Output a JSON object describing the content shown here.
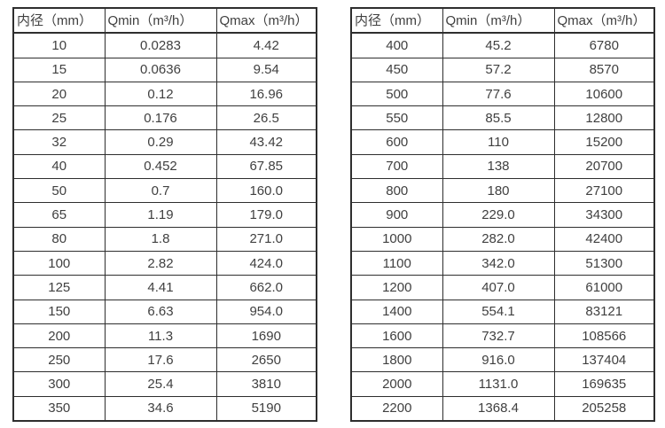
{
  "page": {
    "background": "#ffffff",
    "text_color": "#404040",
    "border_color": "#2e2e2e"
  },
  "tables": [
    {
      "name": "flow-spec-table-small-diameters",
      "headers": [
        "内径（mm）",
        "Qmin（m³/h）",
        "Qmax（m³/h）"
      ],
      "rows": [
        [
          "10",
          "0.0283",
          "4.42"
        ],
        [
          "15",
          "0.0636",
          "9.54"
        ],
        [
          "20",
          "0.12",
          "16.96"
        ],
        [
          "25",
          "0.176",
          "26.5"
        ],
        [
          "32",
          "0.29",
          "43.42"
        ],
        [
          "40",
          "0.452",
          "67.85"
        ],
        [
          "50",
          "0.7",
          "160.0"
        ],
        [
          "65",
          "1.19",
          "179.0"
        ],
        [
          "80",
          "1.8",
          "271.0"
        ],
        [
          "100",
          "2.82",
          "424.0"
        ],
        [
          "125",
          "4.41",
          "662.0"
        ],
        [
          "150",
          "6.63",
          "954.0"
        ],
        [
          "200",
          "11.3",
          "1690"
        ],
        [
          "250",
          "17.6",
          "2650"
        ],
        [
          "300",
          "25.4",
          "3810"
        ],
        [
          "350",
          "34.6",
          "5190"
        ]
      ]
    },
    {
      "name": "flow-spec-table-large-diameters",
      "headers": [
        "内径（mm）",
        "Qmin（m³/h）",
        "Qmax（m³/h）"
      ],
      "rows": [
        [
          "400",
          "45.2",
          "6780"
        ],
        [
          "450",
          "57.2",
          "8570"
        ],
        [
          "500",
          "77.6",
          "10600"
        ],
        [
          "550",
          "85.5",
          "12800"
        ],
        [
          "600",
          "110",
          "15200"
        ],
        [
          "700",
          "138",
          "20700"
        ],
        [
          "800",
          "180",
          "27100"
        ],
        [
          "900",
          "229.0",
          "34300"
        ],
        [
          "1000",
          "282.0",
          "42400"
        ],
        [
          "1100",
          "342.0",
          "51300"
        ],
        [
          "1200",
          "407.0",
          "61000"
        ],
        [
          "1400",
          "554.1",
          "83121"
        ],
        [
          "1600",
          "732.7",
          "108566"
        ],
        [
          "1800",
          "916.0",
          "137404"
        ],
        [
          "2000",
          "1131.0",
          "169635"
        ],
        [
          "2200",
          "1368.4",
          "205258"
        ]
      ]
    }
  ]
}
